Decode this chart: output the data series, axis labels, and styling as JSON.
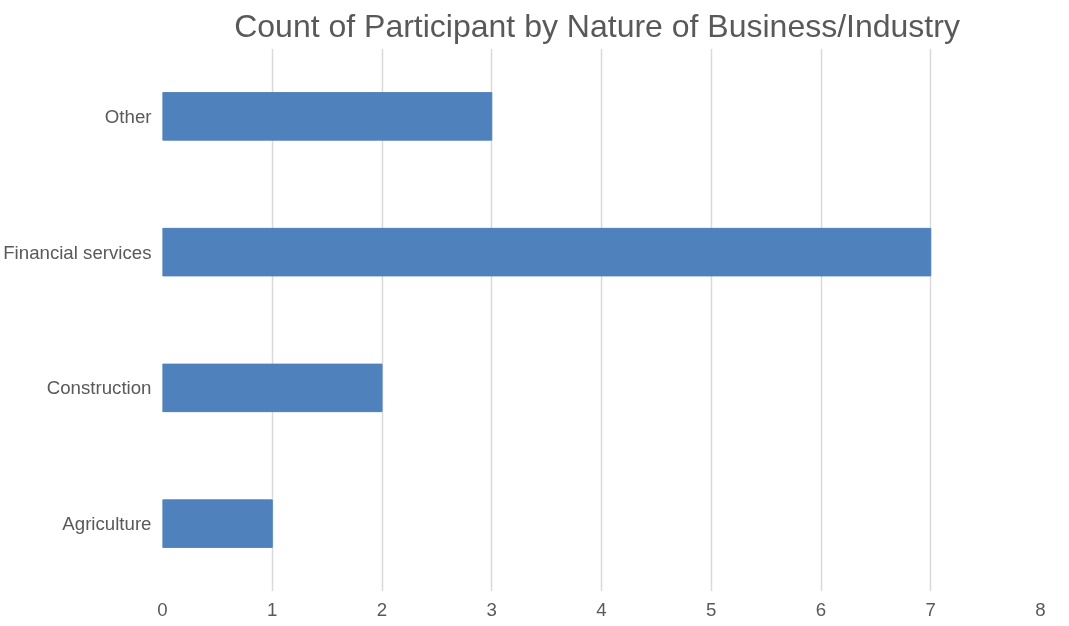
{
  "chart_data": {
    "type": "bar",
    "orientation": "horizontal",
    "title": "Count of Participant  by Nature of Business/Industry",
    "categories": [
      "Other",
      "Financial services",
      "Construction",
      "Agriculture"
    ],
    "values": [
      3,
      7,
      2,
      1
    ],
    "color": "#4f81bd",
    "xlim": [
      0,
      8
    ],
    "xticks": [
      0,
      1,
      2,
      3,
      4,
      5,
      6,
      7,
      8
    ],
    "grid": "x"
  }
}
